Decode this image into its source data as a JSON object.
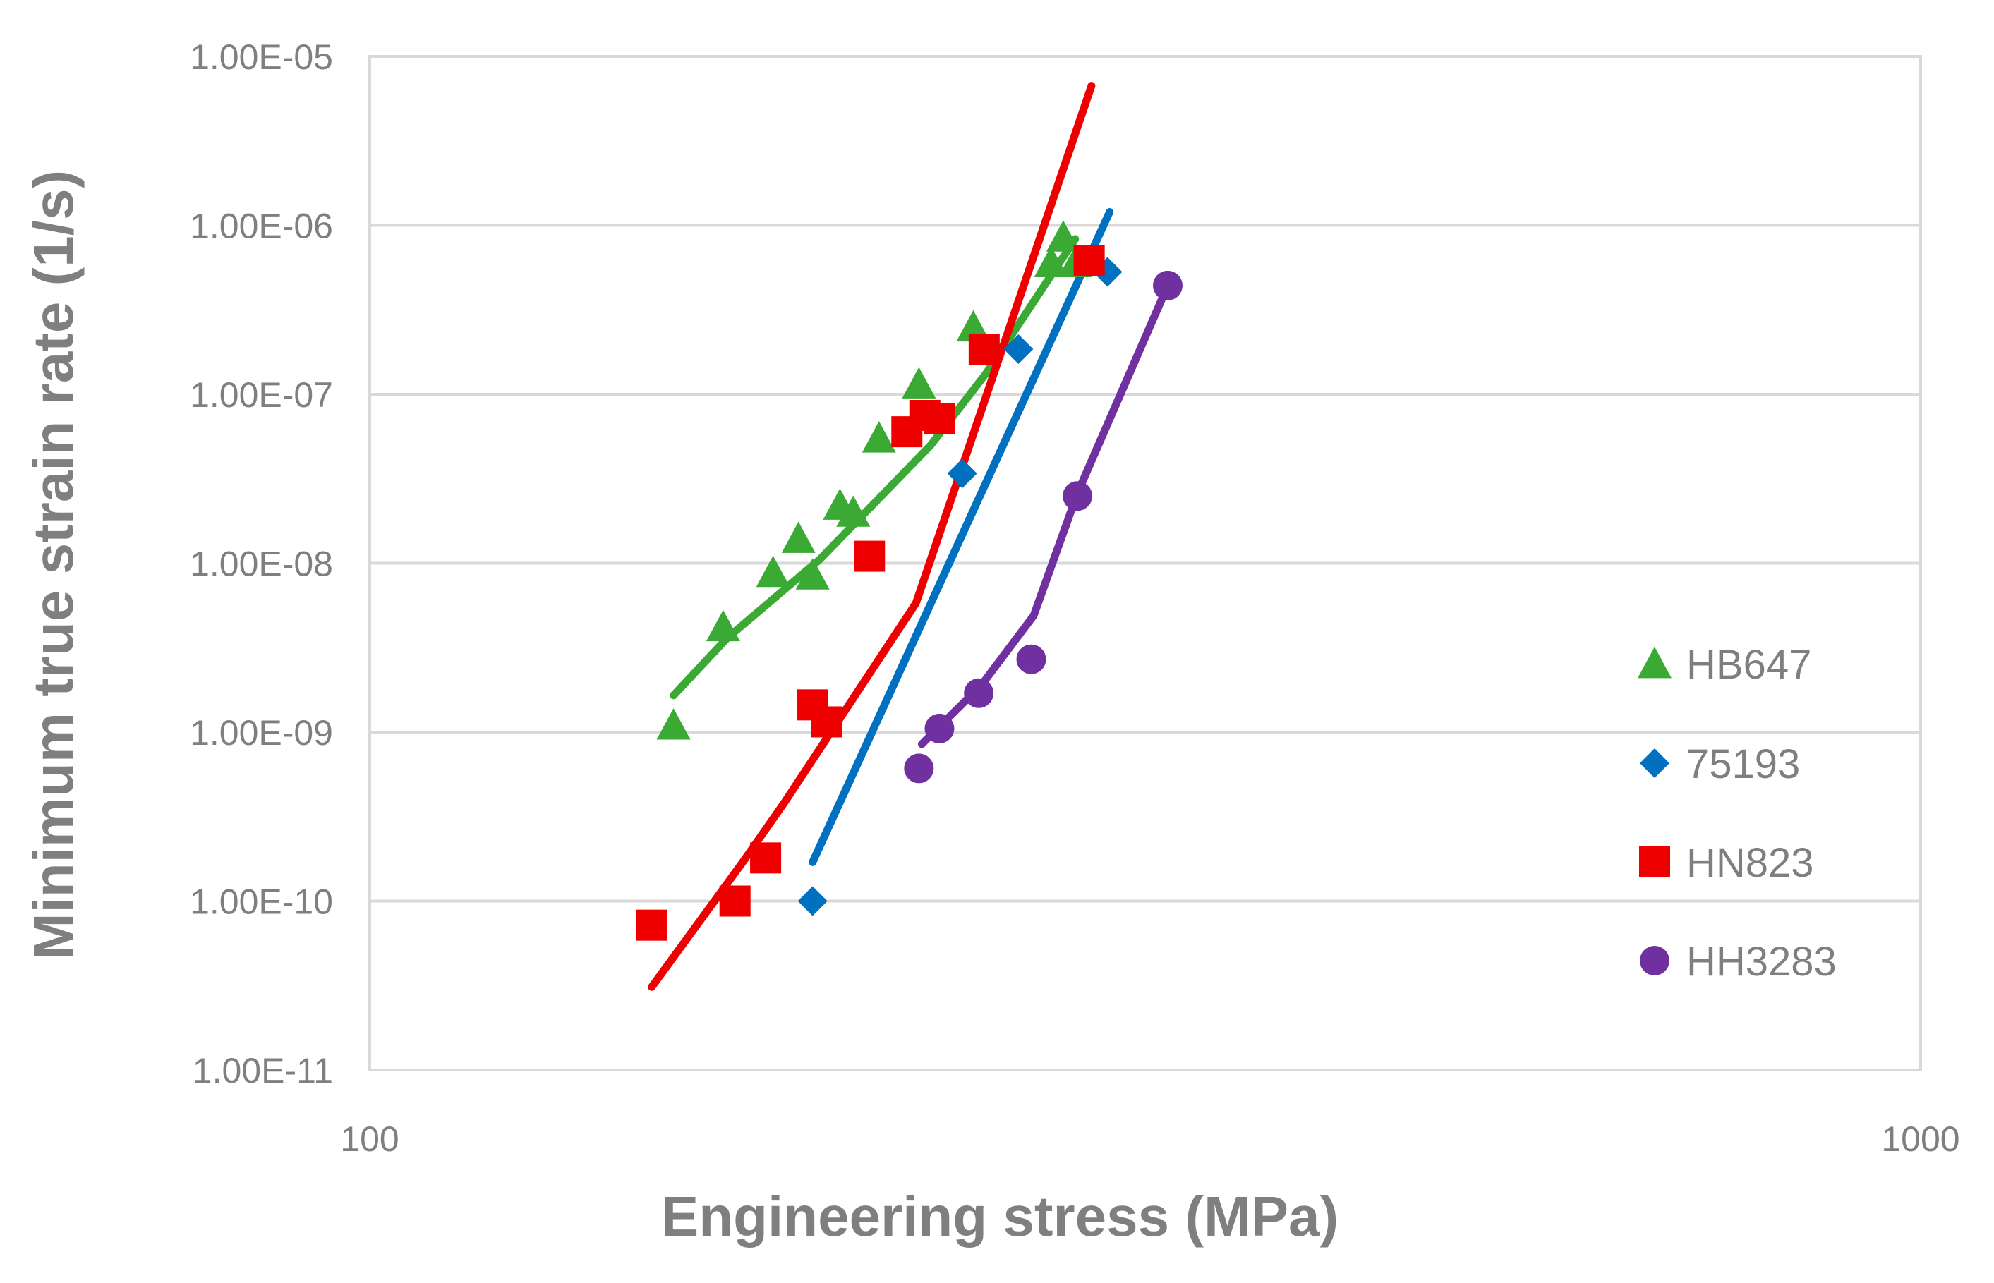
{
  "chart_data": {
    "type": "scatter",
    "xscale": "log",
    "yscale": "log",
    "xlim": [
      100,
      1000
    ],
    "ylim": [
      1e-11,
      1e-05
    ],
    "grid": true,
    "legend_position": "right",
    "xlabel": "Engineering stress (MPa)",
    "ylabel": "Minimum true strain rate (1/s)",
    "xticks": [
      {
        "value": 100,
        "label": "100"
      },
      {
        "value": 1000,
        "label": "1000"
      }
    ],
    "yticks": [
      {
        "value": 1e-05,
        "label": "1.00E-05"
      },
      {
        "value": 1e-06,
        "label": "1.00E-06"
      },
      {
        "value": 1e-07,
        "label": "1.00E-07"
      },
      {
        "value": 1e-08,
        "label": "1.00E-08"
      },
      {
        "value": 1e-09,
        "label": "1.00E-09"
      },
      {
        "value": 1e-10,
        "label": "1.00E-10"
      },
      {
        "value": 1e-11,
        "label": "1.00E-11"
      }
    ],
    "series": [
      {
        "name": "HB647",
        "marker": "triangle",
        "color": "#3aaa35",
        "points": [
          [
            157,
            1.1e-09
          ],
          [
            169,
            4.2e-09
          ],
          [
            182,
            8.8e-09
          ],
          [
            189,
            1.4e-08
          ],
          [
            193,
            8.5e-09
          ],
          [
            201,
            2.2e-08
          ],
          [
            205,
            2e-08
          ],
          [
            213,
            5.5e-08
          ],
          [
            226,
            1.15e-07
          ],
          [
            245,
            2.5e-07
          ],
          [
            275,
            6e-07
          ],
          [
            280,
            8.5e-07
          ],
          [
            285,
            6e-07
          ]
        ],
        "fit": [
          [
            157,
            1.65e-09
          ],
          [
            170,
            3.6e-09
          ],
          [
            195,
            1.05e-08
          ],
          [
            230,
            5e-08
          ],
          [
            250,
            1.35e-07
          ],
          [
            285,
            8.3e-07
          ]
        ]
      },
      {
        "name": "75193",
        "marker": "diamond",
        "color": "#0070c0",
        "points": [
          [
            193,
            1e-10
          ],
          [
            241,
            3.4e-08
          ],
          [
            262,
            1.85e-07
          ],
          [
            299,
            5.3e-07
          ]
        ],
        "fit": [
          [
            193,
            1.7e-10
          ],
          [
            300,
            1.2e-06
          ]
        ]
      },
      {
        "name": "HN823",
        "marker": "square",
        "color": "#ee0000",
        "points": [
          [
            152,
            7.2e-11
          ],
          [
            172,
            1e-10
          ],
          [
            180,
            1.8e-10
          ],
          [
            193,
            1.45e-09
          ],
          [
            197,
            1.15e-09
          ],
          [
            210,
            1.1e-08
          ],
          [
            222,
            6e-08
          ],
          [
            228,
            7.5e-08
          ],
          [
            233,
            7.2e-08
          ],
          [
            249,
            1.85e-07
          ],
          [
            291,
            6.2e-07
          ]
        ],
        "fit": [
          [
            152,
            3.1e-11
          ],
          [
            174,
            1.7e-10
          ],
          [
            185,
            3.8e-10
          ],
          [
            225,
            5.8e-09
          ],
          [
            292,
            6.7e-06
          ]
        ]
      },
      {
        "name": "HH3283",
        "marker": "circle",
        "color": "#7030a0",
        "points": [
          [
            226,
            6.1e-10
          ],
          [
            233,
            1.05e-09
          ],
          [
            247,
            1.7e-09
          ],
          [
            267,
            2.7e-09
          ],
          [
            286,
            2.5e-08
          ],
          [
            327,
            4.4e-07
          ]
        ],
        "fit": [
          [
            227,
            8.5e-10
          ],
          [
            248,
            1.9e-09
          ],
          [
            268,
            4.9e-09
          ],
          [
            286,
            2.6e-08
          ],
          [
            327,
            4.4e-07
          ]
        ]
      }
    ]
  }
}
